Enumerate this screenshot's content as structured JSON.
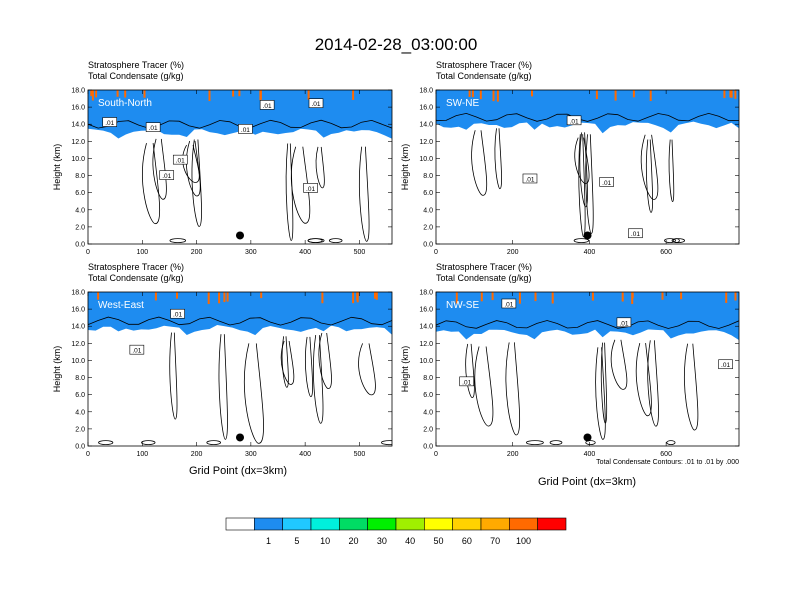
{
  "title": "2014-02-28_03:00:00",
  "panel_header": {
    "line1": "Stratosphere Tracer   (%)",
    "line2": "Total Condensate   (g/kg)"
  },
  "ylabel": "Height (km)",
  "xlabel": "Grid Point (dx=3km)",
  "contour_note": "Total Condensate Contours: .01 to .01 by .000",
  "contour_label": ".01",
  "colorbar": {
    "levels": [
      "1",
      "5",
      "10",
      "20",
      "30",
      "40",
      "50",
      "60",
      "70",
      "100"
    ],
    "colors": [
      "#ffffff",
      "#1e8cf0",
      "#20c8ff",
      "#00f0dc",
      "#00dc64",
      "#00f000",
      "#a0f000",
      "#ffff00",
      "#ffd200",
      "#ffaa00",
      "#ff6a00",
      "#ff0000"
    ]
  },
  "chart_data": [
    {
      "type": "heatmap",
      "panel_label": "South-North",
      "xlim": [
        0,
        560
      ],
      "xticks": [
        "0",
        "100",
        "200",
        "300",
        "400",
        "500"
      ],
      "ylim": [
        0,
        18
      ],
      "yticks": [
        "0.0",
        "2.0",
        "4.0",
        "6.0",
        "8.0",
        "10.0",
        "12.0",
        "14.0",
        "16.0",
        "18.0"
      ],
      "tracer_base_km": 13.2,
      "marker": {
        "x": 280,
        "y_km": 1.0
      },
      "contour_labels": [
        {
          "x": 40,
          "y_km": 14.2
        },
        {
          "x": 120,
          "y_km": 13.6
        },
        {
          "x": 290,
          "y_km": 13.4
        },
        {
          "x": 170,
          "y_km": 9.8
        },
        {
          "x": 145,
          "y_km": 8.0
        },
        {
          "x": 330,
          "y_km": 16.2
        },
        {
          "x": 420,
          "y_km": 16.4
        },
        {
          "x": 410,
          "y_km": 6.5
        }
      ]
    },
    {
      "type": "heatmap",
      "panel_label": "SW-NE",
      "xlim": [
        0,
        790
      ],
      "xticks": [
        "0",
        "200",
        "400",
        "600"
      ],
      "ylim": [
        0,
        18
      ],
      "yticks": [
        "0.0",
        "2.0",
        "4.0",
        "6.0",
        "8.0",
        "10.0",
        "12.0",
        "14.0",
        "16.0",
        "18.0"
      ],
      "tracer_base_km": 14.0,
      "marker": {
        "x": 395,
        "y_km": 1.0
      },
      "contour_labels": [
        {
          "x": 360,
          "y_km": 14.4
        },
        {
          "x": 245,
          "y_km": 7.6
        },
        {
          "x": 445,
          "y_km": 7.2
        },
        {
          "x": 520,
          "y_km": 1.2
        }
      ]
    },
    {
      "type": "heatmap",
      "panel_label": "West-East",
      "xlim": [
        0,
        560
      ],
      "xticks": [
        "0",
        "100",
        "200",
        "300",
        "400",
        "500"
      ],
      "ylim": [
        0,
        18
      ],
      "yticks": [
        "0.0",
        "2.0",
        "4.0",
        "6.0",
        "8.0",
        "10.0",
        "12.0",
        "14.0",
        "16.0",
        "18.0"
      ],
      "tracer_base_km": 13.8,
      "marker": {
        "x": 280,
        "y_km": 1.0
      },
      "contour_labels": [
        {
          "x": 165,
          "y_km": 15.4
        },
        {
          "x": 90,
          "y_km": 11.2
        }
      ]
    },
    {
      "type": "heatmap",
      "panel_label": "NW-SE",
      "xlim": [
        0,
        790
      ],
      "xticks": [
        "0",
        "200",
        "400",
        "600"
      ],
      "ylim": [
        0,
        18
      ],
      "yticks": [
        "0.0",
        "2.0",
        "4.0",
        "6.0",
        "8.0",
        "10.0",
        "12.0",
        "14.0",
        "16.0",
        "18.0"
      ],
      "tracer_base_km": 13.4,
      "marker": {
        "x": 395,
        "y_km": 1.0
      },
      "contour_labels": [
        {
          "x": 190,
          "y_km": 16.6
        },
        {
          "x": 490,
          "y_km": 14.4
        },
        {
          "x": 80,
          "y_km": 7.5
        },
        {
          "x": 755,
          "y_km": 9.5
        }
      ]
    }
  ]
}
